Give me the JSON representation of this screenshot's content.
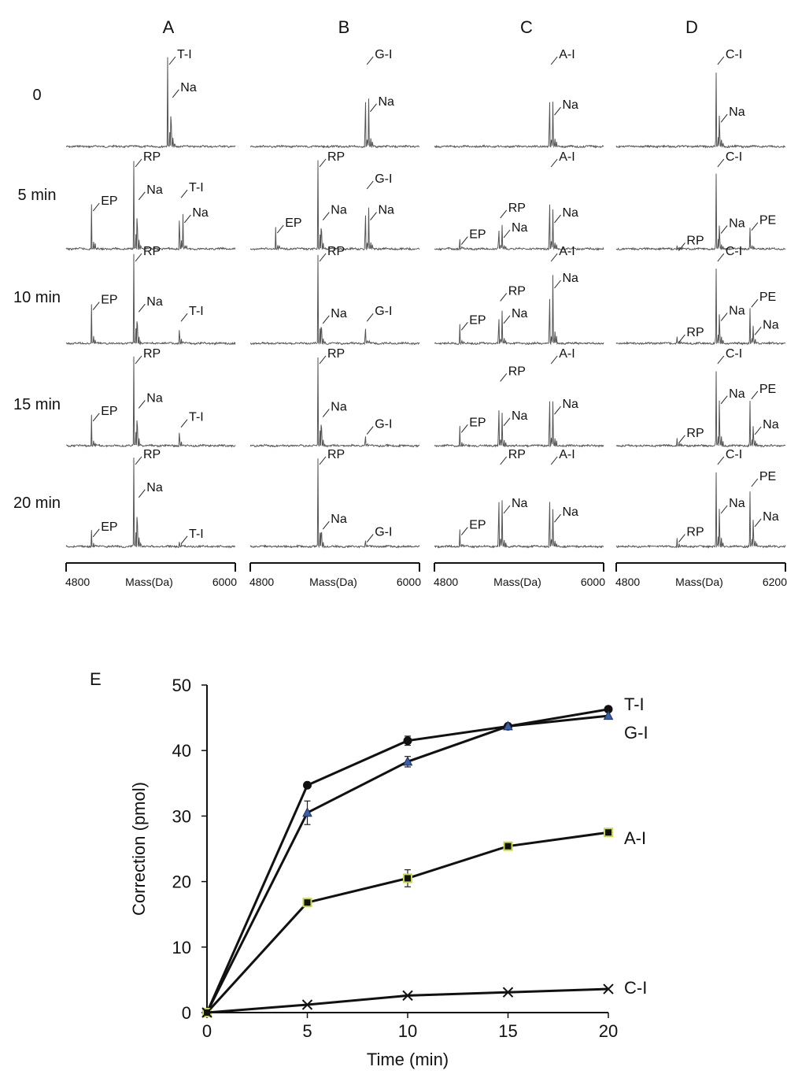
{
  "spectra": {
    "column_titles": [
      "A",
      "B",
      "C",
      "D"
    ],
    "row_labels": [
      "0",
      "5 min",
      "10 min",
      "15 min",
      "20 min"
    ],
    "x_axes": [
      {
        "min_label": "4800",
        "max_label": "6000",
        "axis_label": "Mass(Da)"
      },
      {
        "min_label": "4800",
        "max_label": "6000",
        "axis_label": "Mass(Da)"
      },
      {
        "min_label": "4800",
        "max_label": "6000",
        "axis_label": "Mass(Da)"
      },
      {
        "min_label": "4800",
        "max_label": "6200",
        "axis_label": "Mass(Da)"
      }
    ],
    "panels": [
      [
        {
          "peaks": [
            {
              "f": 0.6,
              "h": 1.0,
              "label": "T-I"
            },
            {
              "f": 0.62,
              "h": 0.68,
              "label": "Na"
            }
          ]
        },
        {
          "peaks": [
            {
              "f": 0.15,
              "h": 0.5,
              "label": "EP"
            },
            {
              "f": 0.4,
              "h": 1.0,
              "label": "RP"
            },
            {
              "f": 0.42,
              "h": 0.68,
              "label": "Na"
            },
            {
              "f": 0.67,
              "h": 0.65,
              "label": "T-I"
            },
            {
              "f": 0.69,
              "h": 0.42,
              "label": "Na"
            }
          ]
        },
        {
          "peaks": [
            {
              "f": 0.15,
              "h": 0.45,
              "label": "EP"
            },
            {
              "f": 0.4,
              "h": 1.0,
              "label": "RP"
            },
            {
              "f": 0.42,
              "h": 0.48,
              "label": "Na"
            },
            {
              "f": 0.67,
              "h": 0.32,
              "label": "T-I"
            }
          ]
        },
        {
          "peaks": [
            {
              "f": 0.15,
              "h": 0.35,
              "label": "EP"
            },
            {
              "f": 0.4,
              "h": 1.0,
              "label": "RP"
            },
            {
              "f": 0.42,
              "h": 0.55,
              "label": "Na"
            },
            {
              "f": 0.67,
              "h": 0.28,
              "label": "T-I"
            }
          ]
        },
        {
          "peaks": [
            {
              "f": 0.15,
              "h": 0.18,
              "label": "EP"
            },
            {
              "f": 0.4,
              "h": 1.0,
              "label": "RP"
            },
            {
              "f": 0.42,
              "h": 0.68,
              "label": "Na"
            },
            {
              "f": 0.67,
              "h": 0.1,
              "label": "T-I"
            }
          ]
        }
      ],
      [
        {
          "peaks": [
            {
              "f": 0.68,
              "h": 1.0,
              "label": "G-I"
            },
            {
              "f": 0.7,
              "h": 0.52,
              "label": "Na"
            }
          ]
        },
        {
          "peaks": [
            {
              "f": 0.15,
              "h": 0.25,
              "label": "EP"
            },
            {
              "f": 0.4,
              "h": 1.0,
              "label": "RP"
            },
            {
              "f": 0.42,
              "h": 0.45,
              "label": "Na"
            },
            {
              "f": 0.68,
              "h": 0.75,
              "label": "G-I"
            },
            {
              "f": 0.7,
              "h": 0.45,
              "label": "Na"
            }
          ]
        },
        {
          "peaks": [
            {
              "f": 0.4,
              "h": 1.0,
              "label": "RP"
            },
            {
              "f": 0.42,
              "h": 0.35,
              "label": "Na"
            },
            {
              "f": 0.68,
              "h": 0.32,
              "label": "G-I"
            }
          ]
        },
        {
          "peaks": [
            {
              "f": 0.4,
              "h": 1.0,
              "label": "RP"
            },
            {
              "f": 0.42,
              "h": 0.45,
              "label": "Na"
            },
            {
              "f": 0.68,
              "h": 0.2,
              "label": "G-I"
            }
          ]
        },
        {
          "peaks": [
            {
              "f": 0.4,
              "h": 1.0,
              "label": "RP"
            },
            {
              "f": 0.42,
              "h": 0.32,
              "label": "Na"
            },
            {
              "f": 0.68,
              "h": 0.12,
              "label": "G-I"
            }
          ]
        }
      ],
      [
        {
          "peaks": [
            {
              "f": 0.68,
              "h": 1.0,
              "label": "A-I"
            },
            {
              "f": 0.7,
              "h": 0.48,
              "label": "Na"
            }
          ]
        },
        {
          "peaks": [
            {
              "f": 0.15,
              "h": 0.12,
              "label": "EP"
            },
            {
              "f": 0.38,
              "h": 0.42,
              "label": "RP"
            },
            {
              "f": 0.4,
              "h": 0.25,
              "label": "Na"
            },
            {
              "f": 0.68,
              "h": 1.0,
              "label": "A-I"
            },
            {
              "f": 0.7,
              "h": 0.42,
              "label": "Na"
            }
          ]
        },
        {
          "peaks": [
            {
              "f": 0.15,
              "h": 0.22,
              "label": "EP"
            },
            {
              "f": 0.38,
              "h": 0.55,
              "label": "RP"
            },
            {
              "f": 0.4,
              "h": 0.35,
              "label": "Na"
            },
            {
              "f": 0.68,
              "h": 1.0,
              "label": "A-I"
            },
            {
              "f": 0.7,
              "h": 0.75,
              "label": "Na"
            }
          ]
        },
        {
          "peaks": [
            {
              "f": 0.15,
              "h": 0.22,
              "label": "EP"
            },
            {
              "f": 0.38,
              "h": 0.8,
              "label": "RP"
            },
            {
              "f": 0.4,
              "h": 0.35,
              "label": "Na"
            },
            {
              "f": 0.68,
              "h": 1.0,
              "label": "A-I"
            },
            {
              "f": 0.7,
              "h": 0.48,
              "label": "Na"
            }
          ]
        },
        {
          "peaks": [
            {
              "f": 0.15,
              "h": 0.2,
              "label": "EP"
            },
            {
              "f": 0.38,
              "h": 1.0,
              "label": "RP"
            },
            {
              "f": 0.4,
              "h": 0.5,
              "label": "Na"
            },
            {
              "f": 0.68,
              "h": 1.0,
              "label": "A-I"
            },
            {
              "f": 0.7,
              "h": 0.4,
              "label": "Na"
            }
          ]
        }
      ],
      [
        {
          "peaks": [
            {
              "f": 0.59,
              "h": 1.0,
              "label": "C-I"
            },
            {
              "f": 0.61,
              "h": 0.4,
              "label": "Na"
            }
          ]
        },
        {
          "peaks": [
            {
              "f": 0.36,
              "h": 0.05,
              "label": "RP"
            },
            {
              "f": 0.59,
              "h": 1.0,
              "label": "C-I"
            },
            {
              "f": 0.61,
              "h": 0.3,
              "label": "Na"
            },
            {
              "f": 0.79,
              "h": 0.28,
              "label": "PE"
            }
          ]
        },
        {
          "peaks": [
            {
              "f": 0.36,
              "h": 0.08,
              "label": "RP"
            },
            {
              "f": 0.59,
              "h": 1.0,
              "label": "C-I"
            },
            {
              "f": 0.61,
              "h": 0.38,
              "label": "Na"
            },
            {
              "f": 0.79,
              "h": 0.48,
              "label": "PE"
            },
            {
              "f": 0.81,
              "h": 0.22,
              "label": "Na"
            }
          ]
        },
        {
          "peaks": [
            {
              "f": 0.36,
              "h": 0.1,
              "label": "RP"
            },
            {
              "f": 0.59,
              "h": 1.0,
              "label": "C-I"
            },
            {
              "f": 0.61,
              "h": 0.6,
              "label": "Na"
            },
            {
              "f": 0.79,
              "h": 0.6,
              "label": "PE"
            },
            {
              "f": 0.81,
              "h": 0.25,
              "label": "Na"
            }
          ]
        },
        {
          "peaks": [
            {
              "f": 0.36,
              "h": 0.12,
              "label": "RP"
            },
            {
              "f": 0.59,
              "h": 1.0,
              "label": "C-I"
            },
            {
              "f": 0.61,
              "h": 0.5,
              "label": "Na"
            },
            {
              "f": 0.79,
              "h": 0.75,
              "label": "PE"
            },
            {
              "f": 0.81,
              "h": 0.35,
              "label": "Na"
            }
          ]
        }
      ]
    ]
  },
  "chart_data": {
    "type": "line",
    "panel_label": "E",
    "xlabel": "Time (min)",
    "ylabel": "Correction (pmol)",
    "x": [
      0,
      5,
      10,
      15,
      20
    ],
    "xlim": [
      0,
      20
    ],
    "ylim": [
      0,
      50
    ],
    "xticks": [
      "0",
      "5",
      "10",
      "15",
      "20"
    ],
    "yticks": [
      "0",
      "10",
      "20",
      "30",
      "40",
      "50"
    ],
    "series": [
      {
        "name": "T-I",
        "marker": "circle",
        "marker_color": "#111111",
        "values": [
          0,
          34.7,
          41.5,
          43.7,
          46.3
        ],
        "errors": [
          0,
          0,
          0.7,
          0,
          0
        ]
      },
      {
        "name": "G-I",
        "marker": "triangle",
        "marker_color": "#3a5fa8",
        "values": [
          0,
          30.5,
          38.3,
          43.7,
          45.3
        ],
        "errors": [
          0,
          1.8,
          0.8,
          0,
          0
        ]
      },
      {
        "name": "A-I",
        "marker": "square",
        "marker_color": "#111111",
        "marker_edge": "#c8d84a",
        "values": [
          0,
          16.8,
          20.5,
          25.4,
          27.5
        ],
        "errors": [
          0,
          0.5,
          1.3,
          0.5,
          0.6
        ]
      },
      {
        "name": "C-I",
        "marker": "x",
        "marker_color": "#111111",
        "values": [
          0,
          1.2,
          2.6,
          3.1,
          3.6
        ],
        "errors": [
          0,
          0,
          0,
          0,
          0
        ]
      }
    ]
  }
}
